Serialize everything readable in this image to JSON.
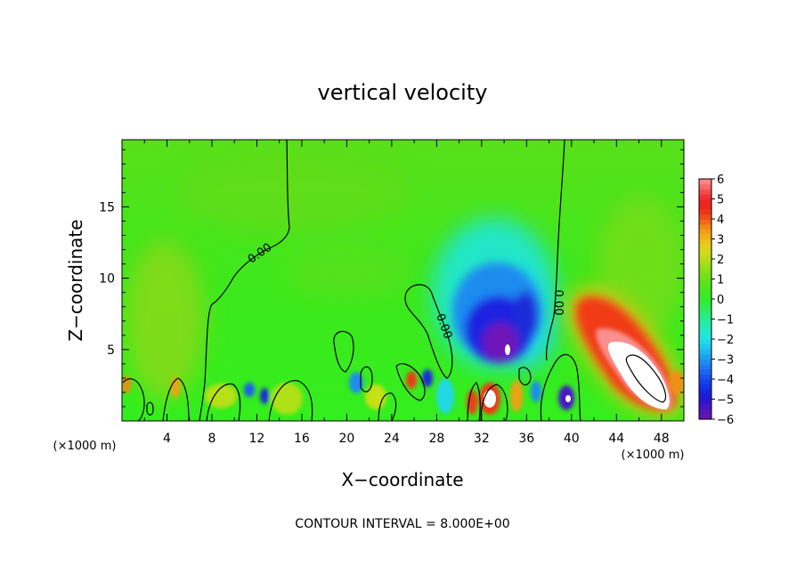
{
  "chart_data": {
    "type": "heatmap",
    "title": "vertical velocity",
    "xlabel": "X−coordinate",
    "ylabel": "Z−coordinate",
    "x_unit_left": "(×1000 m)",
    "x_unit_right": "(×1000 m)",
    "xlim": [
      0,
      50
    ],
    "ylim": [
      0,
      19.7
    ],
    "x_ticks": [
      4,
      8,
      12,
      16,
      20,
      24,
      28,
      32,
      36,
      40,
      44,
      48
    ],
    "x_tick_labels": [
      "4",
      "8",
      "12",
      "16",
      "20",
      "24",
      "28",
      "32",
      "36",
      "40",
      "44",
      "48"
    ],
    "y_ticks": [
      5,
      10,
      15
    ],
    "y_tick_labels": [
      "5",
      "10",
      "15"
    ],
    "footer": "CONTOUR INTERVAL = 8.000E+00",
    "contour_labels": [
      "0.00",
      "0.00",
      "0.00"
    ],
    "colorbar": {
      "range": [
        -6,
        6
      ],
      "levels": [
        6,
        5,
        4,
        3,
        2,
        1,
        0,
        -1,
        -2,
        -3,
        -4,
        -5,
        -6
      ],
      "labels": [
        "6",
        "5",
        "4",
        "3",
        "2",
        "1",
        "0",
        "−1",
        "−2",
        "−3",
        "−4",
        "−5",
        "−6"
      ]
    },
    "features": [
      {
        "name": "updraft-core",
        "x": 46,
        "z": 3.5,
        "value": 6
      },
      {
        "name": "updraft-shoulder",
        "x": 43,
        "z": 6.5,
        "value": 4
      },
      {
        "name": "downdraft-core",
        "x": 33.5,
        "z": 6,
        "value": -6
      },
      {
        "name": "downdraft-upper",
        "x": 33,
        "z": 9,
        "value": -2.5
      },
      {
        "name": "low-level-updraft",
        "x": 32.5,
        "z": 1.3,
        "value": 6
      },
      {
        "name": "low-level-downdraft",
        "x": 39.5,
        "z": 1.5,
        "value": -5
      }
    ]
  }
}
